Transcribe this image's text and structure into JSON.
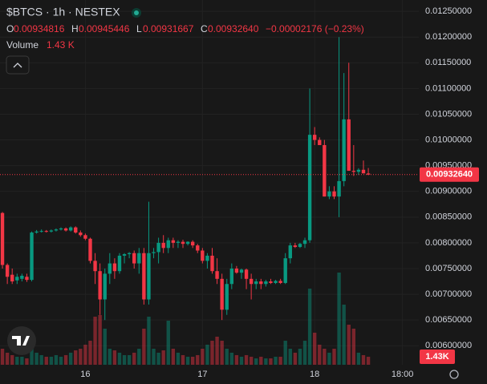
{
  "header": {
    "symbol": "$BTCS · 1h · NESTEX",
    "open_label": "O",
    "open": "0.00934816",
    "high_label": "H",
    "high": "0.00945446",
    "low_label": "L",
    "low": "0.00931667",
    "close_label": "C",
    "close": "0.00932640",
    "change": "−0.00002176 (−0.23%)",
    "volume_label": "Volume",
    "volume": "1.43 K"
  },
  "chart_data": {
    "type": "candlestick",
    "open": [
      0.00858,
      0.00757,
      0.00738,
      0.00727,
      0.0073,
      0.00734,
      0.00728,
      0.0082,
      0.00822,
      0.00823,
      0.00822,
      0.00824,
      0.00826,
      0.00828,
      0.00824,
      0.0083,
      0.0082,
      0.00815,
      0.00808,
      0.00765,
      0.00745,
      0.0069,
      0.0074,
      0.0076,
      0.00745,
      0.00775,
      0.00778,
      0.0078,
      0.0076,
      0.0078,
      0.0069,
      0.0078,
      0.00782,
      0.008,
      0.0079,
      0.00805,
      0.008,
      0.00802,
      0.00798,
      0.00802,
      0.00795,
      0.00785,
      0.00765,
      0.00775,
      0.00745,
      0.0073,
      0.0067,
      0.0072,
      0.0075,
      0.00742,
      0.00748,
      0.0073,
      0.0072,
      0.00725,
      0.0072,
      0.00725,
      0.00722,
      0.00726,
      0.00722,
      0.0077,
      0.00795,
      0.00792,
      0.00798,
      0.00805,
      0.0101,
      0.01,
      0.0099,
      0.0089,
      0.009,
      0.0089,
      0.0092,
      0.0104,
      0.0094,
      0.00938,
      0.00942,
      0.00934816
    ],
    "high": [
      0.0086,
      0.0076,
      0.0075,
      0.0074,
      0.0074,
      0.0074,
      0.00822,
      0.00825,
      0.00826,
      0.00825,
      0.00826,
      0.00828,
      0.0083,
      0.0083,
      0.00832,
      0.00832,
      0.00824,
      0.00818,
      0.0081,
      0.0078,
      0.0076,
      0.0075,
      0.0078,
      0.0077,
      0.0078,
      0.0078,
      0.00782,
      0.00785,
      0.0079,
      0.0079,
      0.0088,
      0.0079,
      0.0081,
      0.00815,
      0.0081,
      0.0081,
      0.00805,
      0.00806,
      0.00803,
      0.00805,
      0.00798,
      0.0079,
      0.0078,
      0.0079,
      0.0077,
      0.0074,
      0.0073,
      0.0076,
      0.00755,
      0.0075,
      0.0075,
      0.0074,
      0.0073,
      0.0073,
      0.00728,
      0.0073,
      0.00728,
      0.0073,
      0.0078,
      0.008,
      0.008,
      0.008,
      0.0081,
      0.011,
      0.01025,
      0.01005,
      0.01,
      0.0091,
      0.0091,
      0.012,
      0.0113,
      0.0115,
      0.0099,
      0.00945,
      0.0096,
      0.00945446
    ],
    "low": [
      0.0075,
      0.0072,
      0.0072,
      0.0072,
      0.00725,
      0.00724,
      0.00725,
      0.00818,
      0.0082,
      0.0082,
      0.0082,
      0.00822,
      0.00824,
      0.00822,
      0.00822,
      0.00818,
      0.00812,
      0.00805,
      0.0076,
      0.0072,
      0.0066,
      0.0065,
      0.0072,
      0.0073,
      0.0074,
      0.0076,
      0.0077,
      0.0075,
      0.0074,
      0.0068,
      0.0068,
      0.0077,
      0.0076,
      0.0078,
      0.0078,
      0.0079,
      0.0079,
      0.0079,
      0.00795,
      0.0079,
      0.0078,
      0.0076,
      0.0075,
      0.0074,
      0.0072,
      0.0065,
      0.0066,
      0.0071,
      0.0074,
      0.0073,
      0.0071,
      0.0069,
      0.0071,
      0.0071,
      0.00715,
      0.0072,
      0.0072,
      0.0072,
      0.0072,
      0.0076,
      0.0079,
      0.0079,
      0.0079,
      0.008,
      0.0099,
      0.0099,
      0.0089,
      0.00885,
      0.00885,
      0.0085,
      0.0091,
      0.0094,
      0.0093,
      0.00932,
      0.00935,
      0.00931667
    ],
    "close": [
      0.00757,
      0.00734,
      0.00725,
      0.00734,
      0.00736,
      0.00728,
      0.0082,
      0.00822,
      0.00823,
      0.00822,
      0.00824,
      0.00826,
      0.00828,
      0.00824,
      0.0083,
      0.0082,
      0.00815,
      0.00808,
      0.00765,
      0.00745,
      0.0069,
      0.0074,
      0.0076,
      0.00745,
      0.00775,
      0.00778,
      0.0078,
      0.0076,
      0.0078,
      0.0069,
      0.0078,
      0.00782,
      0.008,
      0.0079,
      0.00805,
      0.008,
      0.00802,
      0.00798,
      0.00802,
      0.00795,
      0.00785,
      0.00765,
      0.00775,
      0.00745,
      0.0073,
      0.0067,
      0.0072,
      0.0075,
      0.00742,
      0.00748,
      0.0073,
      0.0072,
      0.00725,
      0.0072,
      0.00725,
      0.00722,
      0.00726,
      0.00722,
      0.0077,
      0.00795,
      0.00792,
      0.00798,
      0.00805,
      0.0101,
      0.01,
      0.0099,
      0.0089,
      0.009,
      0.0089,
      0.0092,
      0.0104,
      0.0094,
      0.00938,
      0.00942,
      0.00935,
      0.0093264
    ],
    "volume": [
      2.86,
      2.15,
      1.72,
      1.43,
      1.43,
      1.14,
      3.58,
      2.15,
      1.72,
      1.43,
      1.43,
      1.72,
      1.43,
      1.72,
      2.15,
      2.57,
      2.86,
      3.58,
      4.29,
      8.58,
      8.87,
      6.44,
      2.86,
      2.57,
      2.15,
      1.72,
      1.72,
      2.15,
      2.86,
      6.44,
      8.58,
      2.86,
      2.15,
      2.57,
      7.87,
      2.86,
      2.15,
      1.72,
      1.43,
      1.43,
      1.72,
      2.86,
      3.58,
      4.29,
      5.01,
      4.29,
      2.86,
      2.15,
      1.72,
      1.43,
      1.72,
      1.43,
      1.14,
      1.43,
      1.14,
      1.14,
      1.43,
      1.43,
      4.29,
      2.86,
      2.15,
      2.86,
      4.29,
      13.59,
      5.72,
      3.58,
      2.86,
      2.15,
      2.86,
      16.45,
      10.73,
      7.15,
      6.44,
      2.15,
      1.72,
      1.43
    ],
    "last_price_label": "0.00932640",
    "last_volume_label": "1.43K",
    "up_color": "#089981",
    "down_color": "#f23645",
    "xlim": [
      -0.5,
      85.35
    ],
    "xticks": [
      {
        "value": 17,
        "label": "16"
      },
      {
        "value": 41,
        "label": "17"
      },
      {
        "value": 64,
        "label": "18"
      },
      {
        "value": 82,
        "label": "18:00"
      }
    ],
    "ylim": [
      0.00563,
      0.01272
    ],
    "yticks": [
      {
        "value": 0.006,
        "label": "0.00600000"
      },
      {
        "value": 0.0065,
        "label": "0.00650000"
      },
      {
        "value": 0.007,
        "label": "0.00700000"
      },
      {
        "value": 0.0075,
        "label": "0.00750000"
      },
      {
        "value": 0.008,
        "label": "0.00800000"
      },
      {
        "value": 0.0085,
        "label": "0.00850000"
      },
      {
        "value": 0.009,
        "label": "0.00900000"
      },
      {
        "value": 0.0095,
        "label": "0.00950000"
      },
      {
        "value": 0.01,
        "label": "0.01000000"
      },
      {
        "value": 0.0105,
        "label": "0.01050000"
      },
      {
        "value": 0.011,
        "label": "0.01100000"
      },
      {
        "value": 0.0115,
        "label": "0.01150000"
      },
      {
        "value": 0.012,
        "label": "0.01200000"
      },
      {
        "value": 0.0125,
        "label": "0.01250000"
      }
    ],
    "grid": true
  }
}
